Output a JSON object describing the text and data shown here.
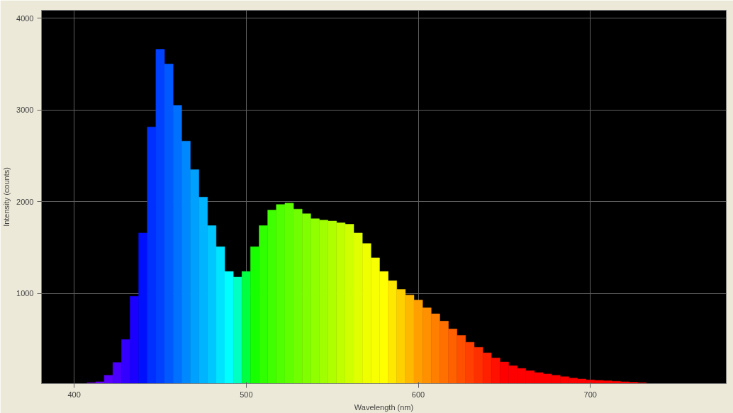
{
  "chart_data": {
    "type": "bar",
    "xlabel": "Wavelength (nm)",
    "ylabel": "Intensity (counts)",
    "x": [
      410,
      415,
      420,
      425,
      430,
      435,
      440,
      445,
      450,
      455,
      460,
      465,
      470,
      475,
      480,
      485,
      490,
      495,
      500,
      505,
      510,
      515,
      520,
      525,
      530,
      535,
      540,
      545,
      550,
      555,
      560,
      565,
      570,
      575,
      580,
      585,
      590,
      595,
      600,
      605,
      610,
      615,
      620,
      625,
      630,
      635,
      640,
      645,
      650,
      655,
      660,
      665,
      670,
      675,
      680,
      685,
      690,
      695,
      700,
      705,
      710,
      715,
      720,
      725,
      730
    ],
    "values": [
      30,
      40,
      110,
      250,
      500,
      970,
      1660,
      2815,
      3660,
      3500,
      3050,
      2660,
      2350,
      2050,
      1740,
      1510,
      1240,
      1180,
      1240,
      1510,
      1740,
      1910,
      1970,
      1985,
      1920,
      1870,
      1815,
      1800,
      1790,
      1770,
      1755,
      1660,
      1545,
      1390,
      1240,
      1140,
      1045,
      985,
      930,
      845,
      780,
      700,
      615,
      545,
      470,
      415,
      355,
      300,
      255,
      215,
      185,
      160,
      140,
      125,
      110,
      95,
      80,
      70,
      60,
      55,
      50,
      45,
      40,
      35,
      30
    ],
    "colors": [
      "#7a00ff",
      "#6a00ff",
      "#5a00ff",
      "#4a00ff",
      "#3300ff",
      "#1a00ff",
      "#0010ff",
      "#0030ff",
      "#0040ff",
      "#0058ff",
      "#0070ff",
      "#0088ff",
      "#00a0ff",
      "#00b4ff",
      "#00c8ff",
      "#00e4ff",
      "#00ffff",
      "#00ffc0",
      "#00ff40",
      "#18ff00",
      "#30ff00",
      "#40ff00",
      "#50ff00",
      "#60ff00",
      "#70ff00",
      "#80ff00",
      "#90ff00",
      "#a0ff00",
      "#b0ff00",
      "#c0ff00",
      "#d0ff00",
      "#e0ff00",
      "#f0ff00",
      "#f8ff00",
      "#ffff00",
      "#ffe800",
      "#ffd000",
      "#ffb800",
      "#ffa000",
      "#ff9000",
      "#ff8000",
      "#ff7000",
      "#ff6000",
      "#ff5000",
      "#ff4000",
      "#ff3000",
      "#ff2000",
      "#ff1000",
      "#ff0000",
      "#ff0000",
      "#ff0000",
      "#ff0000",
      "#ff0000",
      "#ff0000",
      "#ff0000",
      "#ff0000",
      "#ff0000",
      "#ff0000",
      "#ff0000",
      "#ff0000",
      "#ff0000",
      "#ff0000",
      "#ff0000",
      "#ff0000",
      "#ff0000"
    ],
    "xlim": [
      381,
      779
    ],
    "ylim": [
      20,
      4085
    ],
    "xticks": [
      400,
      500,
      600,
      700
    ],
    "yticks": [
      1000,
      2000,
      3000,
      4000
    ],
    "grid": true
  }
}
